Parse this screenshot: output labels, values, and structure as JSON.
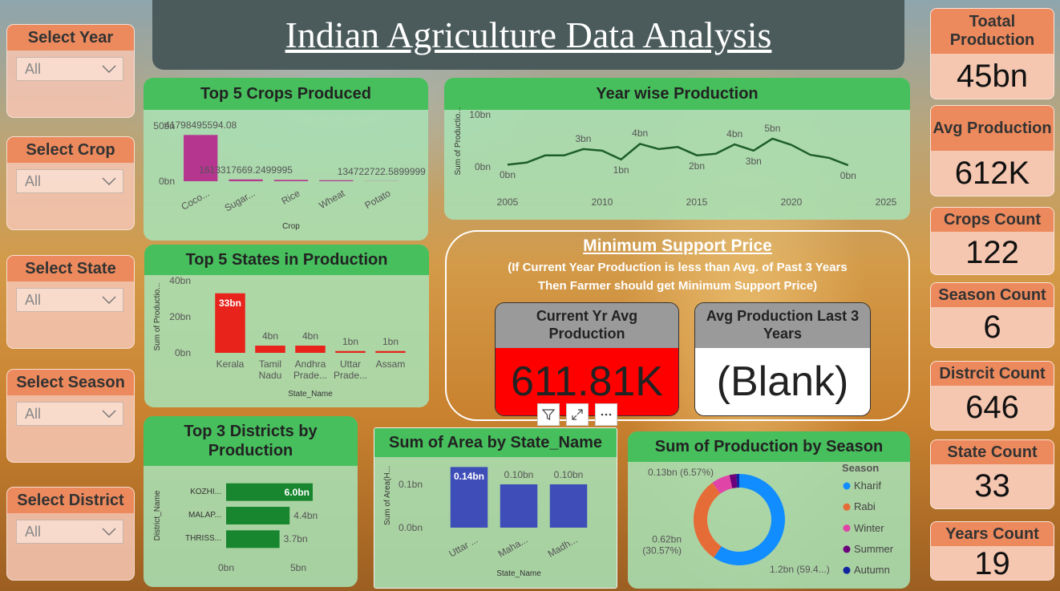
{
  "header": {
    "title": "Indian Agriculture Data Analysis"
  },
  "slicers": [
    {
      "label": "Select Year",
      "value": "All"
    },
    {
      "label": "Select Crop",
      "value": "All"
    },
    {
      "label": "Select State",
      "value": "All"
    },
    {
      "label": "Select Season",
      "value": "All"
    },
    {
      "label": "Select District",
      "value": "All"
    }
  ],
  "cards": [
    {
      "label": "Toatal Production",
      "value": "45bn"
    },
    {
      "label": "Avg Production",
      "value": "612K"
    },
    {
      "label": "Crops Count",
      "value": 122
    },
    {
      "label": "Season Count",
      "value": 6
    },
    {
      "label": "Distrcit Count",
      "value": 646
    },
    {
      "label": "State Count",
      "value": 33
    },
    {
      "label": "Years Count",
      "value": 19
    }
  ],
  "msp": {
    "title": "Minimum Support Price",
    "note": [
      "(If Current Year Production is less than Avg. of Past 3 Years",
      "Then Farmer should get Minimum Support Price)"
    ],
    "cards": [
      {
        "label": "Current Yr Avg Production",
        "value": "611.81K"
      },
      {
        "label": "Avg Production Last 3 Years",
        "value": "(Blank)"
      }
    ]
  },
  "chart_data": [
    {
      "type": "bar",
      "title": "Top 5 Crops Produced",
      "x_label": "Crop",
      "categories": [
        "Coco...",
        "Sugar...",
        "Rice",
        "Wheat",
        "Potato"
      ],
      "values": [
        41798495594.08,
        1613317669.2499995,
        1200000000,
        900000000,
        134722722.5899999
      ],
      "value_labels": [
        "41798495594.08",
        "1613317669.2499995",
        null,
        null,
        "134722722.5899999"
      ],
      "color": "#b5368f",
      "ylim": [
        0,
        50000000000
      ],
      "yticks": [
        {
          "value": 0,
          "label": "0bn"
        },
        {
          "value": 50000000000,
          "label": "50bn"
        }
      ]
    },
    {
      "type": "line",
      "title": "Year wise Production",
      "y_label": "Sum of Productio...",
      "x": [
        2005,
        2006,
        2007,
        2008,
        2009,
        2010,
        2011,
        2012,
        2013,
        2014,
        2015,
        2016,
        2017,
        2018,
        2019,
        2020,
        2021,
        2022,
        2023
      ],
      "values": [
        400000000,
        800000000,
        2200000000,
        2200000000,
        3400000000,
        3100000000,
        1400000000,
        4400000000,
        3400000000,
        3800000000,
        2200000000,
        2500000000,
        4300000000,
        3100000000,
        5400000000,
        4200000000,
        2300000000,
        1700000000,
        300000000
      ],
      "value_labels": [
        "0bn",
        null,
        null,
        null,
        "3bn",
        null,
        "1bn",
        "4bn",
        null,
        null,
        "2bn",
        null,
        "4bn",
        "3bn",
        "5bn",
        null,
        null,
        null,
        "0bn"
      ],
      "color": "#1e5e2c",
      "xlim": [
        2005,
        2025
      ],
      "xticks": [
        2005,
        2010,
        2015,
        2020,
        2025
      ],
      "ylim": [
        0,
        10000000000
      ],
      "yticks": [
        {
          "value": 0,
          "label": "0bn"
        },
        {
          "value": 10000000000,
          "label": "10bn"
        }
      ]
    },
    {
      "type": "bar",
      "title": "Top 5 States in Production",
      "y_label": "Sum of Productio...",
      "x_label": "State_Name",
      "categories": [
        "Kerala",
        "Tamil Nadu",
        "Andhra Prade...",
        "Uttar Prade...",
        "Assam"
      ],
      "values": [
        33000000000,
        4000000000,
        4000000000,
        1000000000,
        1000000000
      ],
      "value_labels": [
        "33bn",
        "4bn",
        "4bn",
        "1bn",
        "1bn"
      ],
      "color": "#e8231c",
      "ylim": [
        0,
        40000000000
      ],
      "yticks": [
        {
          "value": 0,
          "label": "0bn"
        },
        {
          "value": 20000000000,
          "label": "20bn"
        },
        {
          "value": 40000000000,
          "label": "40bn"
        }
      ]
    },
    {
      "type": "bar",
      "orientation": "horizontal",
      "title": "Top 3 Districts by Production",
      "y_label": "District_Name",
      "categories": [
        "KOZHI...",
        "MALAP...",
        "THRISS..."
      ],
      "values": [
        6000000000,
        4400000000,
        3700000000
      ],
      "value_labels": [
        "6.0bn",
        "4.4bn",
        "3.7bn"
      ],
      "color": "#17862f",
      "xlim": [
        0,
        6000000000
      ],
      "xticks": [
        {
          "value": 0,
          "label": "0bn"
        },
        {
          "value": 5000000000,
          "label": "5bn"
        }
      ]
    },
    {
      "type": "bar",
      "title": "Sum of Area by State_Name",
      "y_label": "Sum of Area(H...",
      "x_label": "State_Name",
      "categories": [
        "Uttar ...",
        "Maha...",
        "Madh..."
      ],
      "values": [
        140000000,
        100000000,
        100000000
      ],
      "value_labels": [
        "0.14bn",
        "0.10bn",
        "0.10bn"
      ],
      "color": "#3f4db8",
      "ylim": [
        0,
        150000000
      ],
      "yticks": [
        {
          "value": 0,
          "label": "0.0bn"
        },
        {
          "value": 100000000,
          "label": "0.1bn"
        }
      ]
    },
    {
      "type": "pie",
      "donut": true,
      "title": "Sum of Production by Season",
      "legend_title": "Season",
      "legend": "right",
      "categories": [
        "Kharif",
        "Rabi",
        "Winter",
        "Summer",
        "Autumn"
      ],
      "values": [
        1205000000,
        620000000,
        133300000,
        48700000,
        21500000
      ],
      "value_labels": [
        "1.2bn (59.4...)",
        "0.62bn (30.57%)",
        "0.13bn (6.57%)",
        null,
        null
      ],
      "colors": [
        "#118dff",
        "#e66c37",
        "#e044a7",
        "#6b007b",
        "#12239e"
      ]
    }
  ]
}
